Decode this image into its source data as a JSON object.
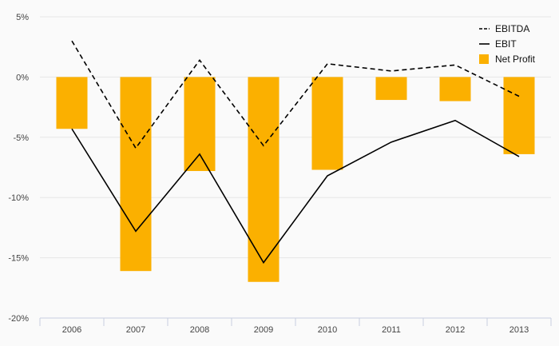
{
  "chart_data": {
    "type": "bar",
    "title": "",
    "xlabel": "",
    "ylabel": "",
    "categories": [
      "2006",
      "2007",
      "2008",
      "2009",
      "2010",
      "2011",
      "2012",
      "2013"
    ],
    "ylim": [
      -20,
      5
    ],
    "yticks": [
      5,
      0,
      -5,
      -10,
      -15,
      -20
    ],
    "ytick_labels": [
      "5%",
      "0%",
      "-5%",
      "-10%",
      "-15%",
      "-20%"
    ],
    "grid": true,
    "legend": "top-right",
    "series": [
      {
        "name": "EBITDA",
        "kind": "line",
        "style": "dashed",
        "color": "#000000",
        "values": [
          3.0,
          -5.9,
          1.4,
          -5.7,
          1.1,
          0.5,
          1.0,
          -1.6
        ]
      },
      {
        "name": "EBIT",
        "kind": "line",
        "style": "solid",
        "color": "#000000",
        "values": [
          -4.3,
          -12.8,
          -6.4,
          -15.4,
          -8.2,
          -5.4,
          -3.6,
          -6.6
        ]
      },
      {
        "name": "Net Profit",
        "kind": "bar",
        "color": "#fbb000",
        "values": [
          -4.3,
          -16.1,
          -7.8,
          -17.0,
          -7.7,
          -1.9,
          -2.0,
          -6.4
        ]
      }
    ]
  }
}
